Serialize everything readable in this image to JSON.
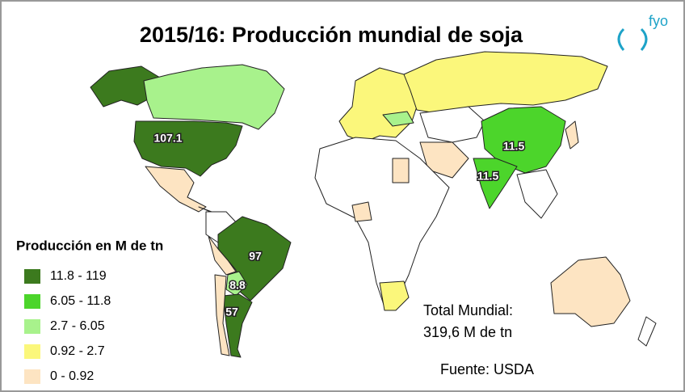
{
  "title": "2015/16: Producción mundial de soja",
  "logo": "fyo",
  "legend": {
    "title": "Producción en M de tn",
    "items": [
      {
        "label": "11.8 - 119",
        "color": "#3c7a1e"
      },
      {
        "label": "6.05 - 11.8",
        "color": "#4cd52b"
      },
      {
        "label": "2.7 - 6.05",
        "color": "#a8f28c"
      },
      {
        "label": "0.92 - 2.7",
        "color": "#fbf77b"
      },
      {
        "label": "0 - 0.92",
        "color": "#fde4c2"
      }
    ]
  },
  "map_labels": [
    "107.1",
    "11.5",
    "11.5",
    "97",
    "8.8",
    "57"
  ],
  "total": [
    "Total Mundial:",
    "319,6 M de tn"
  ],
  "source": "Fuente: USDA"
}
